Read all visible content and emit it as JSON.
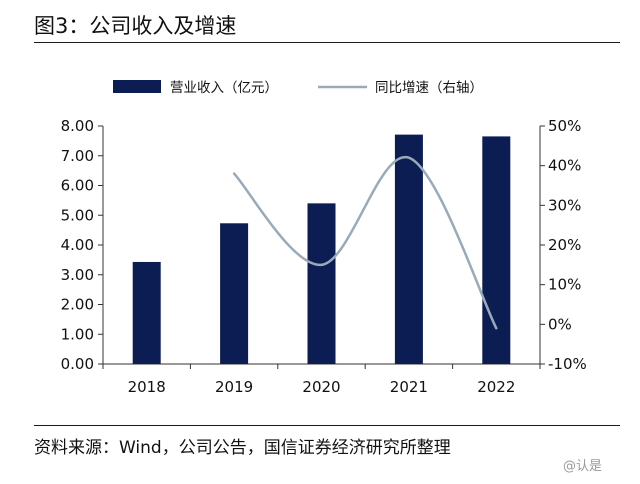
{
  "figure_title": "图3：公司收入及增速",
  "chart_data": {
    "type": "bar",
    "title": "图3：公司收入及增速",
    "categories": [
      "2018",
      "2019",
      "2020",
      "2021",
      "2022"
    ],
    "series": [
      {
        "name": "营业收入（亿元）",
        "type": "bar",
        "axis": "left",
        "color": "#0b1d53",
        "values": [
          3.43,
          4.73,
          5.4,
          7.71,
          7.65
        ]
      },
      {
        "name": "同比增速（右轴）",
        "type": "line",
        "axis": "right",
        "color": "#9aaab8",
        "values": [
          null,
          38,
          15,
          42,
          -1
        ]
      }
    ],
    "left_axis": {
      "min": 0,
      "max": 8,
      "step": 1,
      "tick_labels": [
        "0.00",
        "1.00",
        "2.00",
        "3.00",
        "4.00",
        "5.00",
        "6.00",
        "7.00",
        "8.00"
      ]
    },
    "right_axis": {
      "min": -10,
      "max": 50,
      "step": 10,
      "tick_labels": [
        "-10%",
        "0%",
        "10%",
        "20%",
        "30%",
        "40%",
        "50%"
      ]
    },
    "legend_position": "top",
    "grid": false
  },
  "source_note": "资料来源：Wind，公司公告，国信证券经济研究所整理",
  "watermark": "@认是"
}
